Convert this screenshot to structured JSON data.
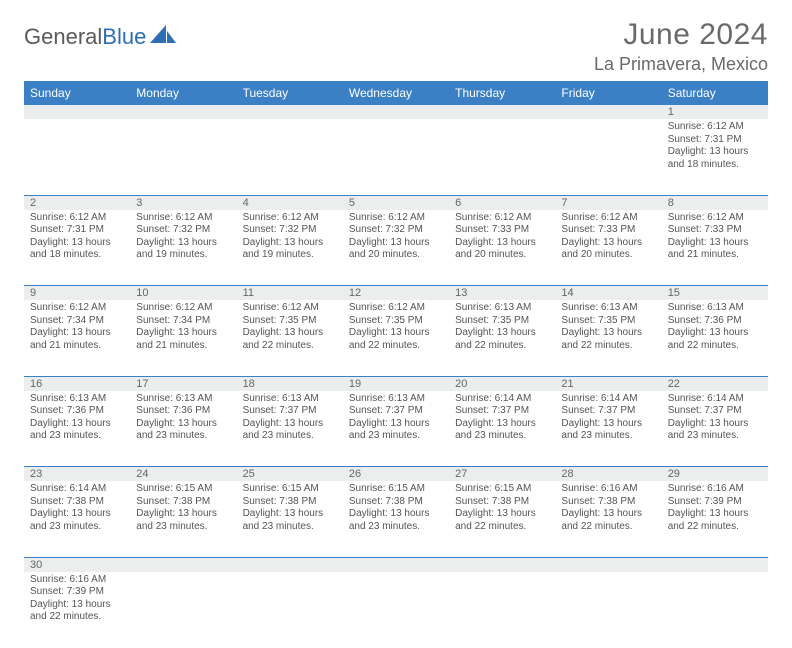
{
  "brand": {
    "part1": "General",
    "part2": "Blue"
  },
  "title": "June 2024",
  "location": "La Primavera, Mexico",
  "colors": {
    "header_bg": "#3b7fc4",
    "header_text": "#ffffff",
    "daynum_bg": "#eceeee",
    "cell_border": "#3b7fc4",
    "page_bg": "#ffffff",
    "logo_blue": "#2d6fb4",
    "text_gray": "#6a6a6a"
  },
  "weekdays": [
    "Sunday",
    "Monday",
    "Tuesday",
    "Wednesday",
    "Thursday",
    "Friday",
    "Saturday"
  ],
  "weeks": [
    {
      "nums": [
        "",
        "",
        "",
        "",
        "",
        "",
        "1"
      ],
      "cells": [
        null,
        null,
        null,
        null,
        null,
        null,
        {
          "sunrise": "6:12 AM",
          "sunset": "7:31 PM",
          "daylight": "13 hours and 18 minutes."
        }
      ]
    },
    {
      "nums": [
        "2",
        "3",
        "4",
        "5",
        "6",
        "7",
        "8"
      ],
      "cells": [
        {
          "sunrise": "6:12 AM",
          "sunset": "7:31 PM",
          "daylight": "13 hours and 18 minutes."
        },
        {
          "sunrise": "6:12 AM",
          "sunset": "7:32 PM",
          "daylight": "13 hours and 19 minutes."
        },
        {
          "sunrise": "6:12 AM",
          "sunset": "7:32 PM",
          "daylight": "13 hours and 19 minutes."
        },
        {
          "sunrise": "6:12 AM",
          "sunset": "7:32 PM",
          "daylight": "13 hours and 20 minutes."
        },
        {
          "sunrise": "6:12 AM",
          "sunset": "7:33 PM",
          "daylight": "13 hours and 20 minutes."
        },
        {
          "sunrise": "6:12 AM",
          "sunset": "7:33 PM",
          "daylight": "13 hours and 20 minutes."
        },
        {
          "sunrise": "6:12 AM",
          "sunset": "7:33 PM",
          "daylight": "13 hours and 21 minutes."
        }
      ]
    },
    {
      "nums": [
        "9",
        "10",
        "11",
        "12",
        "13",
        "14",
        "15"
      ],
      "cells": [
        {
          "sunrise": "6:12 AM",
          "sunset": "7:34 PM",
          "daylight": "13 hours and 21 minutes."
        },
        {
          "sunrise": "6:12 AM",
          "sunset": "7:34 PM",
          "daylight": "13 hours and 21 minutes."
        },
        {
          "sunrise": "6:12 AM",
          "sunset": "7:35 PM",
          "daylight": "13 hours and 22 minutes."
        },
        {
          "sunrise": "6:12 AM",
          "sunset": "7:35 PM",
          "daylight": "13 hours and 22 minutes."
        },
        {
          "sunrise": "6:13 AM",
          "sunset": "7:35 PM",
          "daylight": "13 hours and 22 minutes."
        },
        {
          "sunrise": "6:13 AM",
          "sunset": "7:35 PM",
          "daylight": "13 hours and 22 minutes."
        },
        {
          "sunrise": "6:13 AM",
          "sunset": "7:36 PM",
          "daylight": "13 hours and 22 minutes."
        }
      ]
    },
    {
      "nums": [
        "16",
        "17",
        "18",
        "19",
        "20",
        "21",
        "22"
      ],
      "cells": [
        {
          "sunrise": "6:13 AM",
          "sunset": "7:36 PM",
          "daylight": "13 hours and 23 minutes."
        },
        {
          "sunrise": "6:13 AM",
          "sunset": "7:36 PM",
          "daylight": "13 hours and 23 minutes."
        },
        {
          "sunrise": "6:13 AM",
          "sunset": "7:37 PM",
          "daylight": "13 hours and 23 minutes."
        },
        {
          "sunrise": "6:13 AM",
          "sunset": "7:37 PM",
          "daylight": "13 hours and 23 minutes."
        },
        {
          "sunrise": "6:14 AM",
          "sunset": "7:37 PM",
          "daylight": "13 hours and 23 minutes."
        },
        {
          "sunrise": "6:14 AM",
          "sunset": "7:37 PM",
          "daylight": "13 hours and 23 minutes."
        },
        {
          "sunrise": "6:14 AM",
          "sunset": "7:37 PM",
          "daylight": "13 hours and 23 minutes."
        }
      ]
    },
    {
      "nums": [
        "23",
        "24",
        "25",
        "26",
        "27",
        "28",
        "29"
      ],
      "cells": [
        {
          "sunrise": "6:14 AM",
          "sunset": "7:38 PM",
          "daylight": "13 hours and 23 minutes."
        },
        {
          "sunrise": "6:15 AM",
          "sunset": "7:38 PM",
          "daylight": "13 hours and 23 minutes."
        },
        {
          "sunrise": "6:15 AM",
          "sunset": "7:38 PM",
          "daylight": "13 hours and 23 minutes."
        },
        {
          "sunrise": "6:15 AM",
          "sunset": "7:38 PM",
          "daylight": "13 hours and 23 minutes."
        },
        {
          "sunrise": "6:15 AM",
          "sunset": "7:38 PM",
          "daylight": "13 hours and 22 minutes."
        },
        {
          "sunrise": "6:16 AM",
          "sunset": "7:38 PM",
          "daylight": "13 hours and 22 minutes."
        },
        {
          "sunrise": "6:16 AM",
          "sunset": "7:39 PM",
          "daylight": "13 hours and 22 minutes."
        }
      ]
    },
    {
      "nums": [
        "30",
        "",
        "",
        "",
        "",
        "",
        ""
      ],
      "cells": [
        {
          "sunrise": "6:16 AM",
          "sunset": "7:39 PM",
          "daylight": "13 hours and 22 minutes."
        },
        null,
        null,
        null,
        null,
        null,
        null
      ]
    }
  ],
  "labels": {
    "sunrise": "Sunrise:",
    "sunset": "Sunset:",
    "daylight": "Daylight:"
  }
}
